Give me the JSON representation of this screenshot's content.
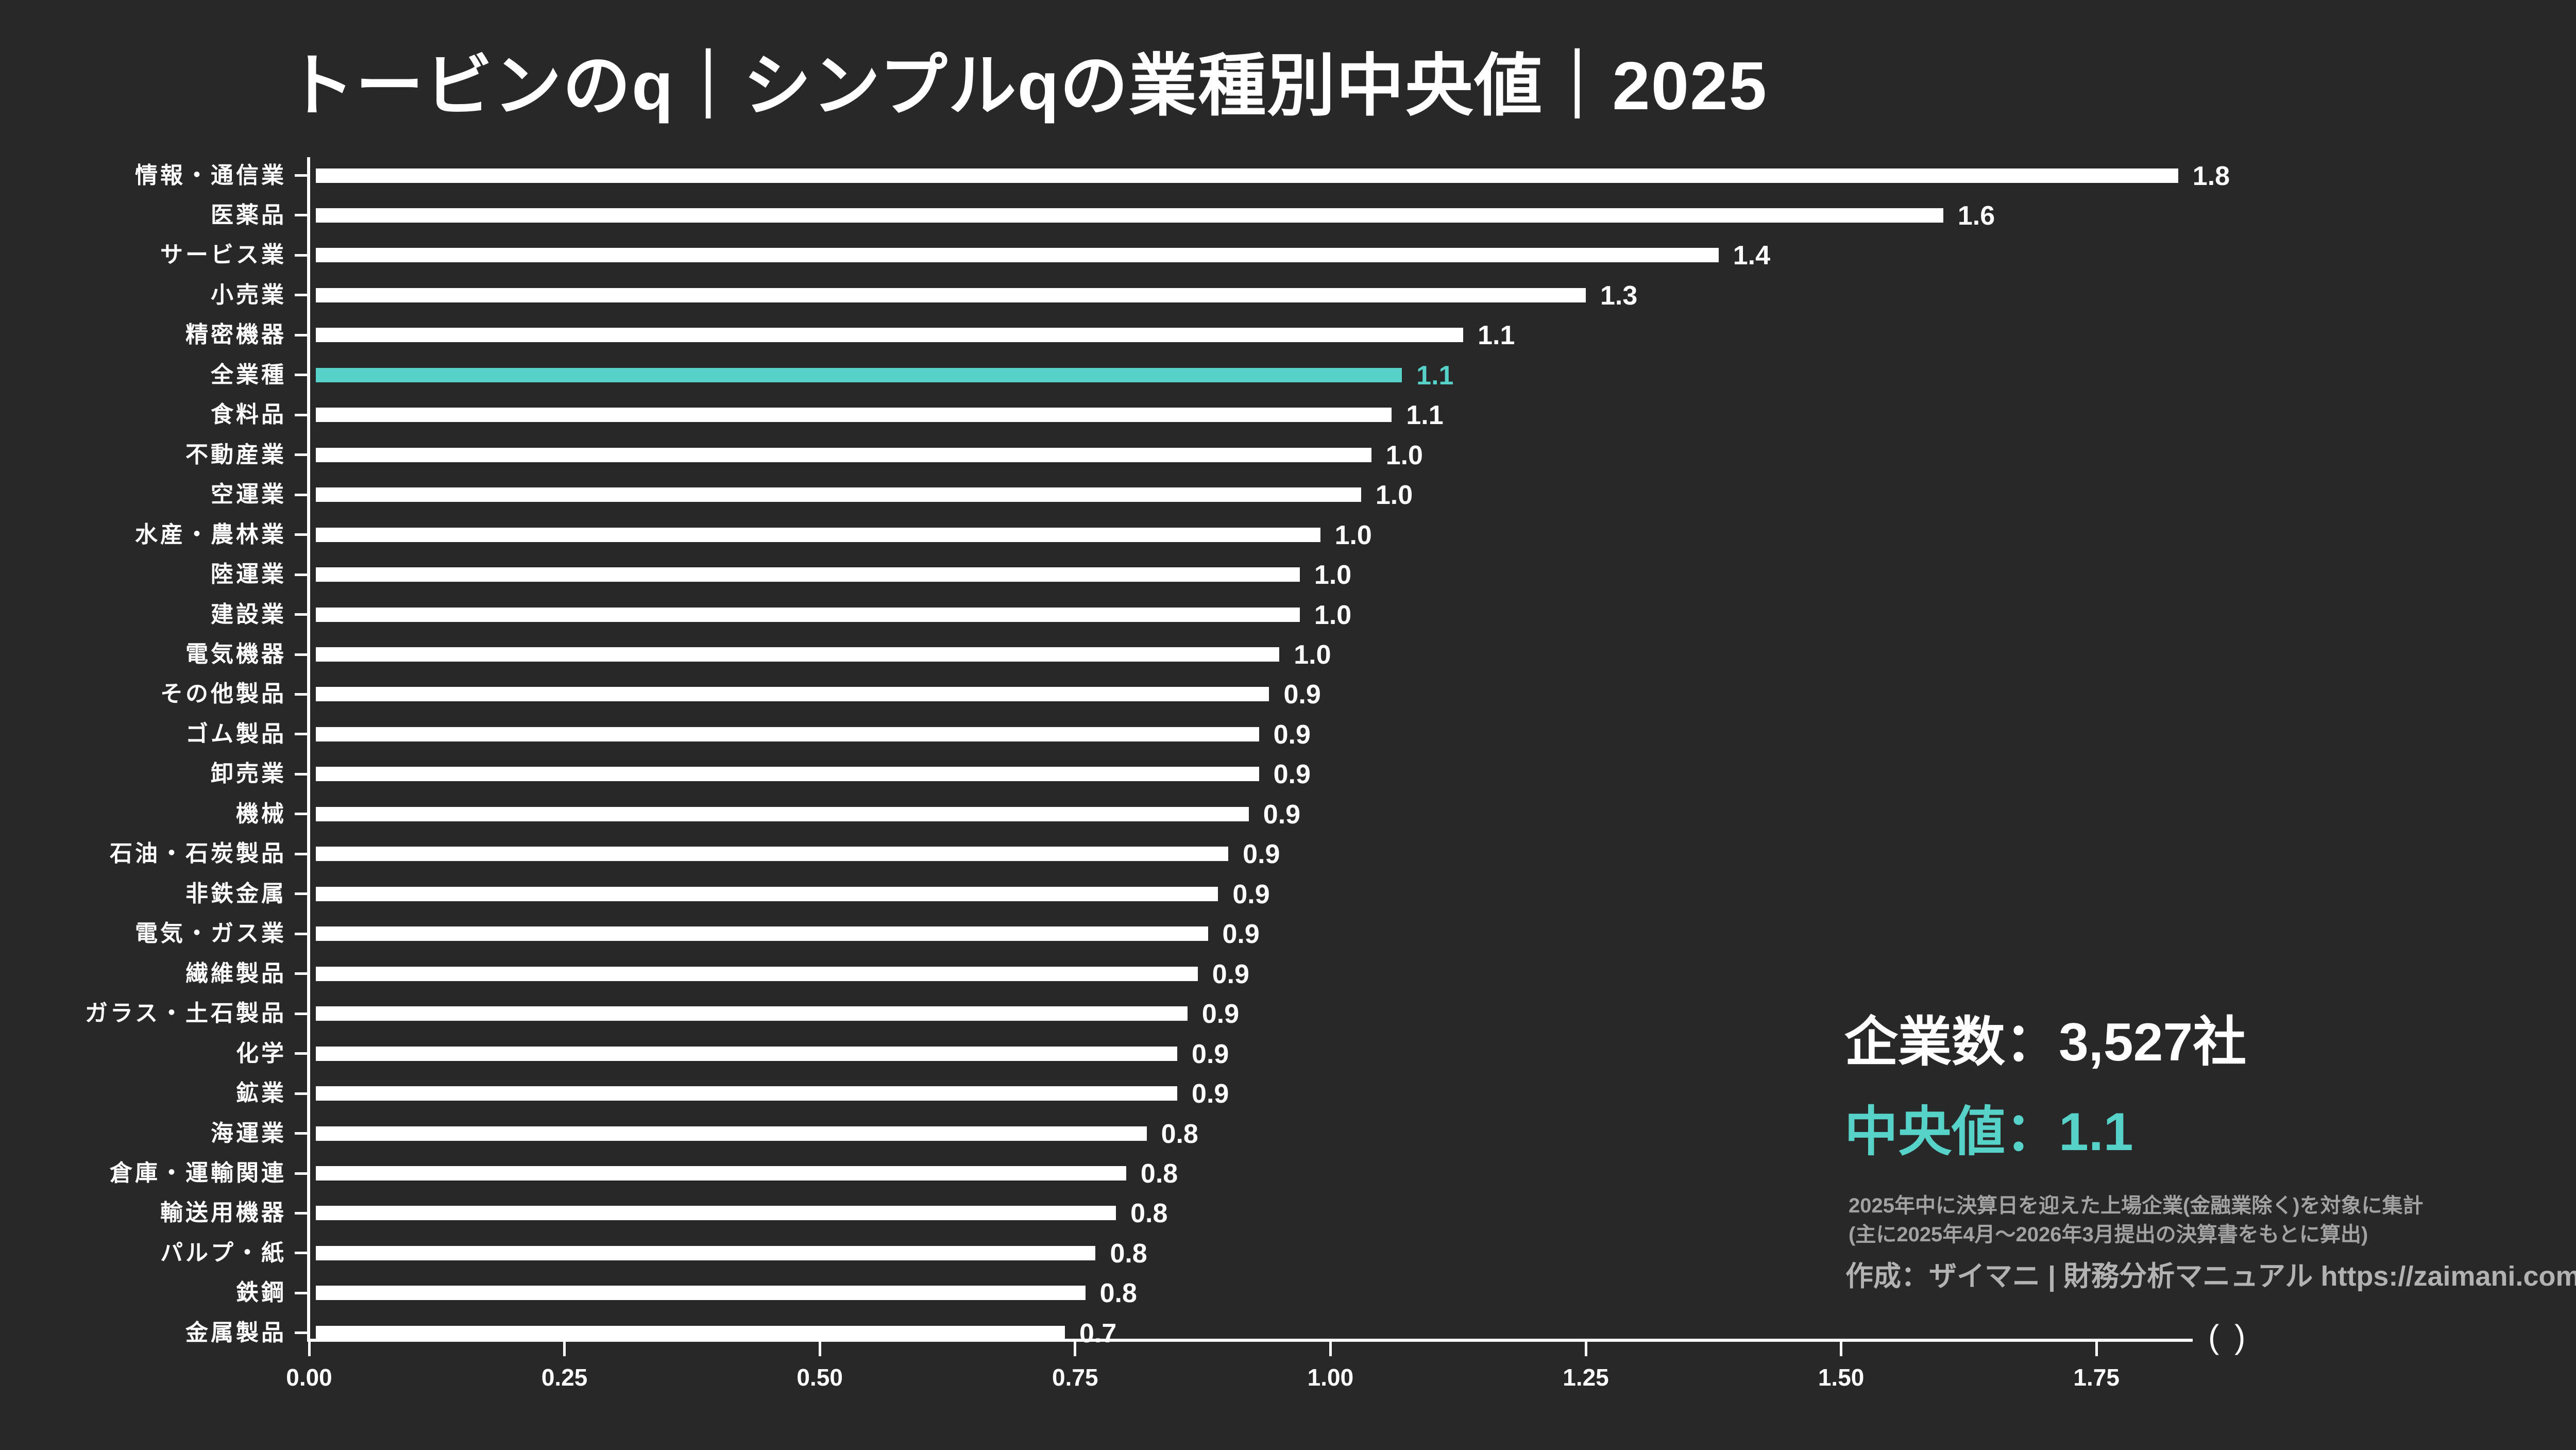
{
  "title": "トービンのq｜シンプルqの業種別中央値｜2025",
  "colors": {
    "background": "#282828",
    "bar": "#ffffff",
    "accent": "#56d2c9",
    "note_gray": "#a2a2a2",
    "credit_gray": "#b2b2b2"
  },
  "chart_data": {
    "type": "bar",
    "orientation": "horizontal",
    "title": "トービンのq｜シンプルqの業種別中央値｜2025",
    "xlabel": "",
    "ylabel": "",
    "xlim": [
      0,
      1.84
    ],
    "grid": false,
    "legend": "none",
    "x_ticks": [
      "0.00",
      "0.25",
      "0.50",
      "0.75",
      "1.00",
      "1.25",
      "1.50",
      "1.75"
    ],
    "x_unit_label": "( )",
    "categories": [
      "情報・通信業",
      "医薬品",
      "サービス業",
      "小売業",
      "精密機器",
      "全業種",
      "食料品",
      "不動産業",
      "空運業",
      "水産・農林業",
      "陸運業",
      "建設業",
      "電気機器",
      "その他製品",
      "ゴム製品",
      "卸売業",
      "機械",
      "石油・石炭製品",
      "非鉄金属",
      "電気・ガス業",
      "繊維製品",
      "ガラス・土石製品",
      "化学",
      "鉱業",
      "海運業",
      "倉庫・運輸関連",
      "輸送用機器",
      "パルプ・紙",
      "鉄鋼",
      "金属製品"
    ],
    "values": [
      1.8,
      1.6,
      1.4,
      1.3,
      1.1,
      1.1,
      1.1,
      1.0,
      1.0,
      1.0,
      1.0,
      1.0,
      1.0,
      0.9,
      0.9,
      0.9,
      0.9,
      0.9,
      0.9,
      0.9,
      0.9,
      0.9,
      0.9,
      0.9,
      0.8,
      0.8,
      0.8,
      0.8,
      0.8,
      0.7
    ],
    "value_labels": [
      "1.8",
      "1.6",
      "1.4",
      "1.3",
      "1.1",
      "1.1",
      "1.1",
      "1.0",
      "1.0",
      "1.0",
      "1.0",
      "1.0",
      "1.0",
      "0.9",
      "0.9",
      "0.9",
      "0.9",
      "0.9",
      "0.9",
      "0.9",
      "0.9",
      "0.9",
      "0.9",
      "0.9",
      "0.8",
      "0.8",
      "0.8",
      "0.8",
      "0.8",
      "0.7"
    ],
    "bar_lengths": [
      1.83,
      1.6,
      1.38,
      1.25,
      1.13,
      1.07,
      1.06,
      1.04,
      1.03,
      0.99,
      0.97,
      0.97,
      0.95,
      0.94,
      0.93,
      0.93,
      0.92,
      0.9,
      0.89,
      0.88,
      0.87,
      0.86,
      0.85,
      0.85,
      0.82,
      0.8,
      0.79,
      0.77,
      0.76,
      0.74
    ],
    "highlight_index": 5,
    "highlight_category": "全業種"
  },
  "stats": {
    "companies": "企業数：3,527社",
    "median": "中央値：1.1"
  },
  "notes": [
    "2025年中に決算日を迎えた上場企業(金融業除く)を対象に集計",
    "(主に2025年4月〜2026年3月提出の決算書をもとに算出)"
  ],
  "credit": "作成：ザイマニ | 財務分析マニュアル https://zaimani.com/"
}
